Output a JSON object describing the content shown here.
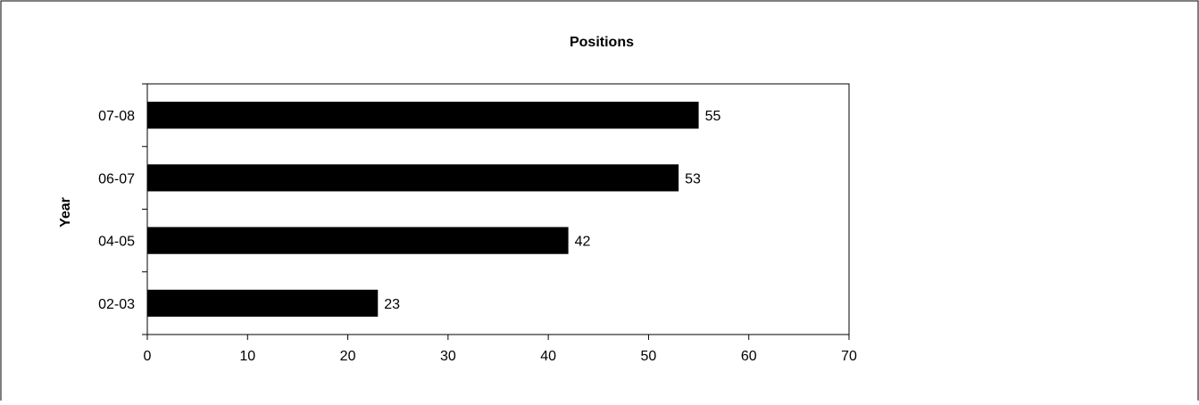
{
  "chart_data": {
    "type": "bar",
    "orientation": "horizontal",
    "title": "Positions",
    "xlabel": "",
    "ylabel": "Year",
    "categories": [
      "07-08",
      "06-07",
      "04-05",
      "02-03"
    ],
    "values": [
      55,
      53,
      42,
      23
    ],
    "xlim": [
      0,
      70
    ],
    "x_ticks": [
      "0",
      "10",
      "20",
      "30",
      "40",
      "50",
      "60",
      "70"
    ],
    "data_labels": [
      "55",
      "53",
      "42",
      "23"
    ],
    "bar_color": "#000000",
    "grid": false,
    "legend": "none"
  }
}
